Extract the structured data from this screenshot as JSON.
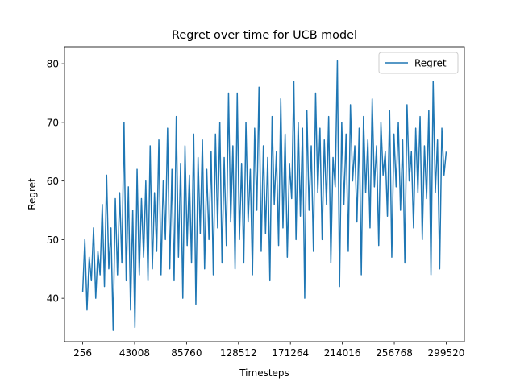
{
  "chart_data": {
    "type": "line",
    "title": "Regret over time for UCB model",
    "x_label": "Timesteps",
    "y_label": "Regret",
    "legend": "upper right",
    "grid": false,
    "xlim": [
      -14707,
      314483
    ],
    "ylim": [
      32.6,
      82.9
    ],
    "xticks": [
      256,
      43008,
      85760,
      128512,
      171264,
      214016,
      256768,
      299520
    ],
    "yticks": [
      40,
      50,
      60,
      70,
      80
    ],
    "x": [
      256,
      2048,
      3840,
      5632,
      7424,
      9216,
      11008,
      12800,
      14592,
      16384,
      18176,
      19968,
      21760,
      23552,
      25344,
      27136,
      28928,
      30720,
      32512,
      34304,
      36096,
      37888,
      39680,
      41472,
      43264,
      45056,
      46848,
      48640,
      50432,
      52224,
      54016,
      55808,
      57600,
      59392,
      61184,
      62976,
      64768,
      66560,
      68352,
      70144,
      71936,
      73728,
      75520,
      77312,
      79104,
      80896,
      82688,
      84480,
      86272,
      88064,
      89856,
      91648,
      93440,
      95232,
      97024,
      98816,
      100608,
      102400,
      104192,
      105984,
      107776,
      109568,
      111360,
      113152,
      114944,
      116736,
      118528,
      120320,
      122112,
      123904,
      125696,
      127488,
      129280,
      131072,
      132864,
      134656,
      136448,
      138240,
      140032,
      141824,
      143616,
      145408,
      147200,
      148992,
      150784,
      152576,
      154368,
      156160,
      157952,
      159744,
      161536,
      163328,
      165120,
      166912,
      168704,
      170496,
      172288,
      174080,
      175872,
      177664,
      179456,
      181248,
      183040,
      184832,
      186624,
      188416,
      190208,
      192000,
      193792,
      195584,
      197376,
      199168,
      200960,
      202752,
      204544,
      206336,
      208128,
      209920,
      211712,
      213504,
      215296,
      217088,
      218880,
      220672,
      222464,
      224256,
      226048,
      227840,
      229632,
      231424,
      233216,
      235008,
      236800,
      238592,
      240384,
      242176,
      243968,
      245760,
      247552,
      249344,
      251136,
      252928,
      254720,
      256512,
      258304,
      260096,
      261888,
      263680,
      265472,
      267264,
      269056,
      270848,
      272640,
      274432,
      276224,
      278016,
      279808,
      281600,
      283392,
      285184,
      286976,
      288768,
      290560,
      292352,
      294144,
      295936,
      297728,
      299520
    ],
    "series": [
      {
        "name": "Regret",
        "color": "#1f77b4",
        "values": [
          41,
          50,
          38,
          47,
          43,
          52,
          40,
          48,
          44,
          56,
          42,
          61,
          45,
          52,
          34.5,
          57,
          44,
          58,
          46,
          70,
          43,
          59,
          38,
          55,
          35,
          62,
          44,
          57,
          47,
          60,
          43,
          66,
          45,
          58,
          48,
          67,
          44,
          60,
          50,
          69,
          45,
          62,
          43,
          71,
          47,
          63,
          40,
          66,
          49,
          61,
          46,
          68,
          39,
          64,
          51,
          67,
          45,
          62,
          50,
          65,
          44,
          68,
          52,
          70,
          46,
          64,
          49,
          75,
          53,
          66,
          45,
          75,
          50,
          63,
          46,
          70,
          53,
          62,
          44,
          69,
          55,
          76,
          48,
          66,
          51,
          64,
          43,
          71,
          56,
          65,
          49,
          74,
          52,
          68,
          47,
          63,
          57,
          77,
          50,
          70,
          54,
          69,
          40,
          72,
          55,
          66,
          48,
          75,
          58,
          69,
          50,
          67,
          56,
          71,
          46,
          64,
          59,
          80.5,
          42,
          70,
          56,
          68,
          48,
          73,
          60,
          66,
          53,
          69,
          44,
          71,
          58,
          67,
          52,
          74,
          59,
          66,
          49,
          70,
          61,
          65,
          54,
          72,
          47,
          68,
          59,
          70,
          55,
          67,
          46,
          73,
          60,
          65,
          52,
          69,
          58,
          71,
          50,
          66,
          57,
          72,
          44,
          77,
          58,
          67,
          45,
          69,
          61,
          65
        ]
      }
    ]
  }
}
